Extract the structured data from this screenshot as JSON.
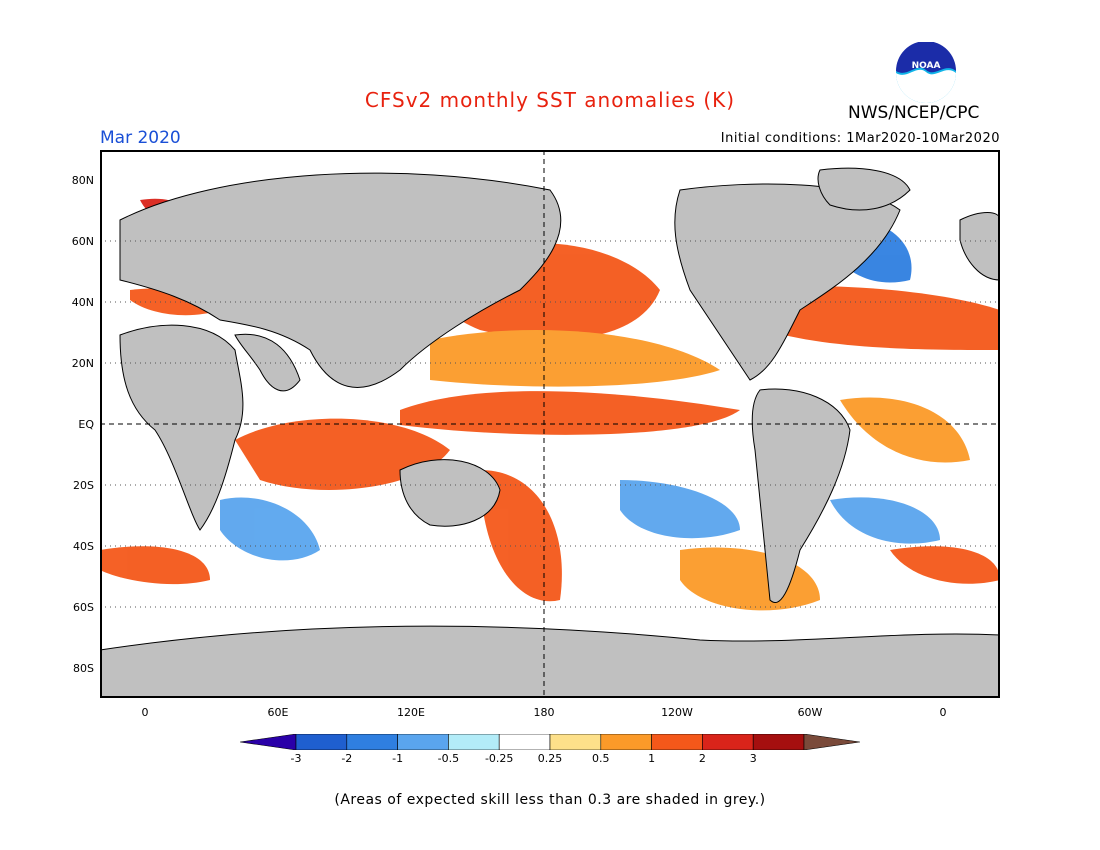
{
  "title": "CFSv2 monthly SST anomalies (K)",
  "month": "Mar 2020",
  "agency": "NWS/NCEP/CPC",
  "logo_text": "NOAA",
  "initial_conditions": "Initial conditions: 1Mar2020-10Mar2020",
  "note": "(Areas of expected skill less than 0.3 are shaded in grey.)",
  "colors": {
    "title": "#e8220f",
    "month": "#1a4fd6",
    "land": "#c0c0c0",
    "skill_grey": "#c8c8c8",
    "ocean_neutral": "#ffffff"
  },
  "lat_labels": [
    "80N",
    "60N",
    "40N",
    "20N",
    "EQ",
    "20S",
    "40S",
    "60S",
    "80S"
  ],
  "lon_labels": [
    "0",
    "60E",
    "120E",
    "180",
    "120W",
    "60W",
    "0"
  ],
  "colorbar": {
    "levels": [
      "-3",
      "-2",
      "-1",
      "-0.5",
      "-0.25",
      "0.25",
      "0.5",
      "1",
      "2",
      "3"
    ],
    "colors": [
      "#2a00a8",
      "#1f5fcf",
      "#2f7fe0",
      "#5aa5ee",
      "#b3ecf8",
      "#ffffff",
      "#fde08a",
      "#fb9a29",
      "#f4581a",
      "#d9241a",
      "#a50f0f",
      "#7a4a3a"
    ]
  }
}
